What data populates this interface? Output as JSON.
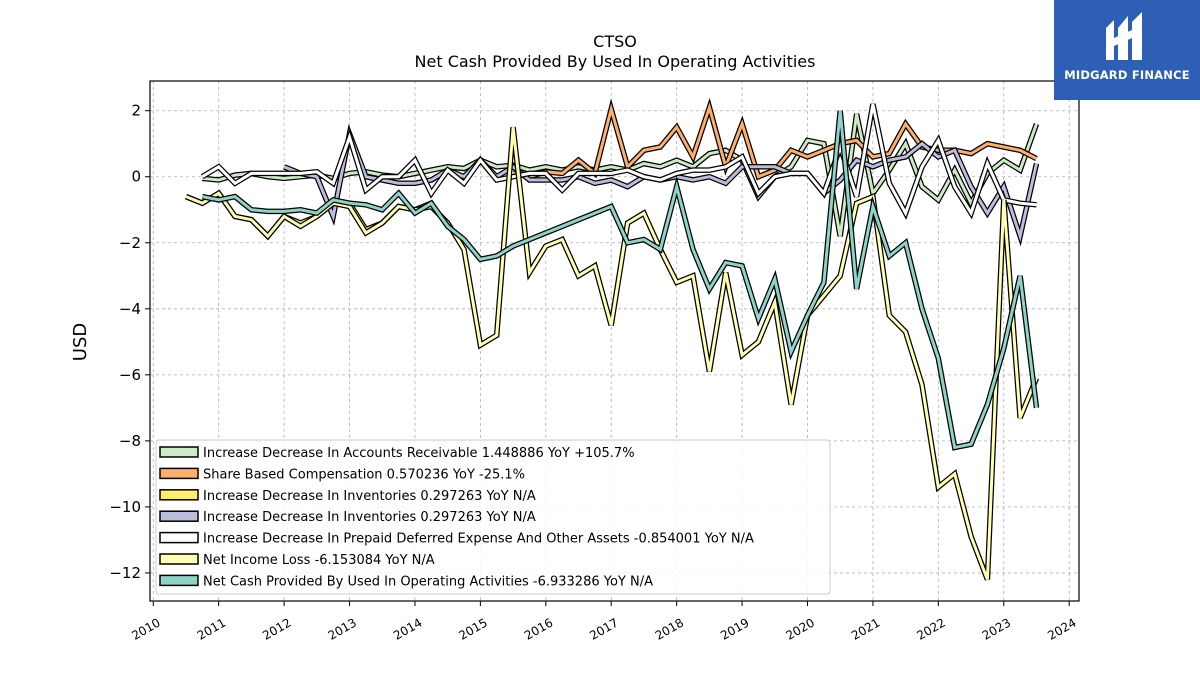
{
  "brand": {
    "name": "MIDGARD FINANCE",
    "bg_color": "#2d5fb5",
    "icon": "midgard-logo-icon"
  },
  "chart_data": {
    "type": "line",
    "title": "CTSO",
    "subtitle": "Net Cash Provided By Used In Operating Activities",
    "xlabel": "",
    "ylabel": "USD",
    "xlim": [
      2009.95,
      2024.15
    ],
    "ylim": [
      -12.85,
      2.9
    ],
    "x_ticks": [
      2010,
      2011,
      2012,
      2013,
      2014,
      2015,
      2016,
      2017,
      2018,
      2019,
      2020,
      2021,
      2022,
      2023,
      2024
    ],
    "y_ticks": [
      2,
      0,
      -2,
      -4,
      -6,
      -8,
      -10,
      -12
    ],
    "y_tick_labels": [
      "2",
      "0",
      "−2",
      "−4",
      "−6",
      "−8",
      "−10",
      "−12"
    ],
    "grid": true,
    "legend_position": "lower-left",
    "series": [
      {
        "name": "Increase Decrease In Accounts Receivable  1.448886 YoY +105.7%",
        "color": "#ccebc5",
        "x": [
          2010.75,
          2011.0,
          2011.25,
          2011.5,
          2011.75,
          2012.0,
          2012.25,
          2012.5,
          2012.75,
          2013.0,
          2013.25,
          2013.5,
          2013.75,
          2014.0,
          2014.25,
          2014.5,
          2014.75,
          2015.0,
          2015.25,
          2015.5,
          2015.75,
          2016.0,
          2016.25,
          2016.5,
          2016.75,
          2017.0,
          2017.25,
          2017.5,
          2017.75,
          2018.0,
          2018.25,
          2018.5,
          2018.75,
          2019.0,
          2019.25,
          2019.5,
          2019.75,
          2020.0,
          2020.25,
          2020.5,
          2020.75,
          2021.0,
          2021.25,
          2021.5,
          2021.75,
          2022.0,
          2022.25,
          2022.5,
          2022.75,
          2023.0,
          2023.25,
          2023.5
        ],
        "y": [
          -0.05,
          -0.1,
          0.05,
          0.1,
          0.0,
          -0.05,
          0.0,
          0.05,
          -0.05,
          0.1,
          0.15,
          0.05,
          0.0,
          0.1,
          0.2,
          0.3,
          0.25,
          0.5,
          0.3,
          0.35,
          0.2,
          0.3,
          0.2,
          0.3,
          0.2,
          0.3,
          0.2,
          0.4,
          0.3,
          0.5,
          0.3,
          0.7,
          0.8,
          0.5,
          -0.6,
          0.0,
          0.3,
          1.1,
          1.0,
          -1.8,
          1.9,
          -0.5,
          0.2,
          1.0,
          -0.3,
          -0.7,
          0.2,
          -0.8,
          0.1,
          0.5,
          0.2,
          1.6
        ]
      },
      {
        "name": "Share Based Compensation  0.570236 YoY -25.1%",
        "color": "#fdae6b",
        "x": [
          2015.5,
          2015.75,
          2016.0,
          2016.25,
          2016.5,
          2016.75,
          2017.0,
          2017.25,
          2017.5,
          2017.75,
          2018.0,
          2018.25,
          2018.5,
          2018.75,
          2019.0,
          2019.25,
          2019.5,
          2019.75,
          2020.0,
          2020.25,
          2020.5,
          2020.75,
          2021.0,
          2021.25,
          2021.5,
          2021.75,
          2022.0,
          2022.25,
          2022.5,
          2022.75,
          2023.0,
          2023.25,
          2023.5
        ],
        "y": [
          0.1,
          0.0,
          0.15,
          0.1,
          0.5,
          0.1,
          2.05,
          0.3,
          0.8,
          0.9,
          1.5,
          0.6,
          2.1,
          0.3,
          1.6,
          0.0,
          0.2,
          0.8,
          0.6,
          0.8,
          1.0,
          1.1,
          0.6,
          0.7,
          1.6,
          0.9,
          0.8,
          0.8,
          0.7,
          1.0,
          0.9,
          0.8,
          0.55
        ]
      },
      {
        "name": "Increase Decrease In Inventories  0.297263 YoY N/A",
        "color": "#ffed6f",
        "x": [
          2010.5,
          2010.75,
          2011.0,
          2011.25,
          2011.5,
          2011.75,
          2012.0,
          2012.25,
          2012.5,
          2012.75,
          2013.0,
          2013.25,
          2013.5,
          2013.75,
          2014.0,
          2014.25
        ],
        "y": [
          -0.6,
          -0.8,
          -0.5,
          -1.2,
          -1.3,
          -1.8,
          -1.2,
          -1.4,
          -1.2,
          -0.8,
          -0.8,
          -1.6,
          -1.4,
          -0.9,
          -1.0,
          -0.8
        ]
      },
      {
        "name": "Increase Decrease In Inventories  0.297263 YoY N/A",
        "color": "#bcbddc",
        "x": [
          2012.0,
          2012.25,
          2012.5,
          2012.75,
          2013.0,
          2013.25,
          2013.5,
          2013.75,
          2014.0,
          2014.25,
          2014.5,
          2014.75,
          2015.0,
          2015.25,
          2015.5,
          2015.75,
          2016.0,
          2016.25,
          2016.5,
          2016.75,
          2017.0,
          2017.25,
          2017.5,
          2017.75,
          2018.0,
          2018.25,
          2018.5,
          2018.75,
          2019.0,
          2019.25,
          2019.5,
          2019.75,
          2020.0,
          2020.25,
          2020.5,
          2020.75,
          2021.0,
          2021.25,
          2021.5,
          2021.75,
          2022.0,
          2022.25,
          2022.5,
          2022.75,
          2023.0,
          2023.25,
          2023.5
        ],
        "y": [
          0.3,
          0.1,
          0.0,
          -1.2,
          1.3,
          0.0,
          -0.1,
          -0.2,
          -0.2,
          -0.1,
          0.2,
          0.0,
          0.5,
          0.0,
          0.3,
          -0.1,
          -0.1,
          -0.1,
          0.0,
          -0.2,
          -0.1,
          -0.3,
          0.0,
          -0.1,
          0.0,
          -0.1,
          0.0,
          -0.2,
          0.3,
          0.3,
          0.3,
          0.1,
          0.1,
          -0.5,
          -0.1,
          0.5,
          0.3,
          0.5,
          0.6,
          1.0,
          0.6,
          0.8,
          -0.3,
          -1.1,
          -0.3,
          -1.8,
          0.4
        ]
      },
      {
        "name": "Increase Decrease In Prepaid Deferred Expense And Other Assets  -0.854001 YoY N/A",
        "color": "#ffffff",
        "x": [
          2010.75,
          2011.0,
          2011.25,
          2011.5,
          2011.75,
          2012.0,
          2012.25,
          2012.5,
          2012.75,
          2013.0,
          2013.25,
          2013.5,
          2013.75,
          2014.0,
          2014.25,
          2014.5,
          2014.75,
          2015.0,
          2015.25,
          2015.5,
          2015.75,
          2016.0,
          2016.25,
          2016.5,
          2016.75,
          2017.0,
          2017.25,
          2017.5,
          2017.75,
          2018.0,
          2018.25,
          2018.5,
          2018.75,
          2019.0,
          2019.25,
          2019.5,
          2019.75,
          2020.0,
          2020.25,
          2020.5,
          2020.75,
          2021.0,
          2021.25,
          2021.5,
          2021.75,
          2022.0,
          2022.25,
          2022.5,
          2022.75,
          2023.0,
          2023.25,
          2023.5
        ],
        "y": [
          0.0,
          0.3,
          -0.2,
          0.1,
          0.1,
          0.1,
          0.1,
          0.15,
          -0.2,
          1.2,
          -0.4,
          0.0,
          0.0,
          0.5,
          -0.5,
          0.2,
          -0.2,
          0.5,
          -0.1,
          0.0,
          0.1,
          0.1,
          -0.4,
          0.1,
          0.1,
          0.1,
          0.2,
          0.0,
          -0.1,
          0.1,
          0.2,
          0.2,
          0.3,
          0.6,
          -0.5,
          0.0,
          0.1,
          0.1,
          -0.5,
          0.9,
          -0.6,
          2.2,
          -0.2,
          -1.1,
          0.3,
          1.1,
          -0.3,
          -1.1,
          0.4,
          -0.7,
          -0.8,
          -0.85
        ]
      },
      {
        "name": "Net Income Loss  -6.153084 YoY N/A",
        "color": "#ffffb3",
        "x": [
          2010.5,
          2010.75,
          2011.0,
          2011.25,
          2011.5,
          2011.75,
          2012.0,
          2012.25,
          2012.5,
          2012.75,
          2013.0,
          2013.25,
          2013.5,
          2013.75,
          2014.0,
          2014.25,
          2014.5,
          2014.75,
          2015.0,
          2015.25,
          2015.5,
          2015.75,
          2016.0,
          2016.25,
          2016.5,
          2016.75,
          2017.0,
          2017.25,
          2017.5,
          2017.75,
          2018.0,
          2018.25,
          2018.5,
          2018.75,
          2019.0,
          2019.25,
          2019.5,
          2019.75,
          2020.0,
          2020.25,
          2020.5,
          2020.75,
          2021.0,
          2021.25,
          2021.5,
          2021.75,
          2022.0,
          2022.25,
          2022.5,
          2022.75,
          2023.0,
          2023.25,
          2023.5
        ],
        "y": [
          -0.6,
          -0.8,
          -0.5,
          -1.2,
          -1.3,
          -1.8,
          -1.2,
          -1.5,
          -1.2,
          -0.8,
          -0.9,
          -1.7,
          -1.4,
          -0.9,
          -1.0,
          -0.9,
          -1.4,
          -2.2,
          -5.1,
          -4.8,
          1.5,
          -2.9,
          -2.1,
          -1.9,
          -3.0,
          -2.7,
          -4.5,
          -1.4,
          -1.1,
          -2.2,
          -3.2,
          -3.0,
          -5.9,
          -2.9,
          -5.4,
          -5.0,
          -3.8,
          -6.9,
          -4.2,
          -3.6,
          -3.0,
          -0.8,
          -0.6,
          -4.2,
          -4.7,
          -6.3,
          -9.4,
          -9.0,
          -10.9,
          -12.2,
          -0.7,
          -7.3,
          -6.1
        ]
      },
      {
        "name": "Net Cash Provided By Used In Operating Activities  -6.933286 YoY N/A",
        "color": "#8dd3c7",
        "x": [
          2010.75,
          2011.0,
          2011.25,
          2011.5,
          2011.75,
          2012.0,
          2012.25,
          2012.5,
          2012.75,
          2013.0,
          2013.25,
          2013.5,
          2013.75,
          2014.0,
          2014.25,
          2014.5,
          2014.75,
          2015.0,
          2015.25,
          2015.5,
          2015.75,
          2016.0,
          2016.25,
          2016.5,
          2016.75,
          2017.0,
          2017.25,
          2017.5,
          2017.75,
          2018.0,
          2018.25,
          2018.5,
          2018.75,
          2019.0,
          2019.25,
          2019.5,
          2019.75,
          2020.0,
          2020.25,
          2020.5,
          2020.75,
          2021.0,
          2021.25,
          2021.5,
          2021.75,
          2022.0,
          2022.25,
          2022.5,
          2022.75,
          2023.0,
          2023.25,
          2023.5
        ],
        "y": [
          -0.6,
          -0.7,
          -0.6,
          -1.0,
          -1.05,
          -1.05,
          -1.0,
          -1.1,
          -0.7,
          -0.8,
          -0.85,
          -1.0,
          -0.5,
          -1.1,
          -0.8,
          -1.5,
          -1.9,
          -2.5,
          -2.4,
          -2.1,
          -1.9,
          -1.7,
          -1.5,
          -1.3,
          -1.1,
          -0.9,
          -2.0,
          -1.9,
          -2.2,
          -0.3,
          -2.2,
          -3.4,
          -2.6,
          -2.7,
          -4.3,
          -3.1,
          -5.3,
          -4.2,
          -3.2,
          2.0,
          -3.4,
          -0.9,
          -2.4,
          -2.0,
          -4.0,
          -5.5,
          -8.2,
          -8.1,
          -6.9,
          -5.2,
          -3.0,
          -7.0
        ]
      }
    ]
  }
}
